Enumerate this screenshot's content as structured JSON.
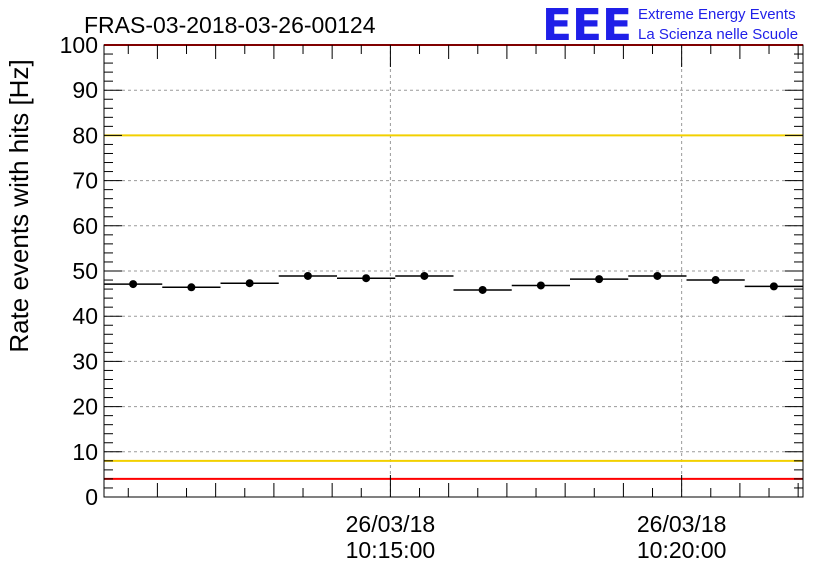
{
  "chart_data": {
    "type": "scatter",
    "title": "FRAS-03-2018-03-26-00124",
    "xlabel": "",
    "ylabel": "Rate events with hits [Hz]",
    "ylim": [
      0,
      100
    ],
    "yticks": [
      0,
      10,
      20,
      30,
      40,
      50,
      60,
      70,
      80,
      90,
      100
    ],
    "xlim": [
      "2018-03-26 10:10:05",
      "2018-03-26 10:22:05"
    ],
    "xtick_labels": [
      {
        "date": "26/03/18",
        "time": "10:15:00",
        "t": "2018-03-26 10:15:00"
      },
      {
        "date": "26/03/18",
        "time": "10:20:00",
        "t": "2018-03-26 10:20:00"
      }
    ],
    "grid": true,
    "legend": "none",
    "series": [
      {
        "x": [
          "2018-03-26 10:10:35",
          "2018-03-26 10:11:35",
          "2018-03-26 10:12:35",
          "2018-03-26 10:13:35",
          "2018-03-26 10:14:35",
          "2018-03-26 10:15:35",
          "2018-03-26 10:16:35",
          "2018-03-26 10:17:35",
          "2018-03-26 10:18:35",
          "2018-03-26 10:19:35",
          "2018-03-26 10:20:35",
          "2018-03-26 10:21:35"
        ],
        "values": [
          47.1,
          46.4,
          47.3,
          48.9,
          48.4,
          48.9,
          45.8,
          46.8,
          48.2,
          48.9,
          48.0,
          46.6
        ],
        "bin_width_seconds": 60
      }
    ],
    "reference_lines": [
      {
        "y": 100,
        "color": "#ff0000"
      },
      {
        "y": 80,
        "color": "#f2d000"
      },
      {
        "y": 8,
        "color": "#f2d000"
      },
      {
        "y": 4,
        "color": "#ff0000"
      }
    ]
  },
  "logo": {
    "mark": "EEE",
    "line1": "Extreme Energy Events",
    "line2": "La Scienza nelle Scuole",
    "color": "#1f1fe8"
  }
}
